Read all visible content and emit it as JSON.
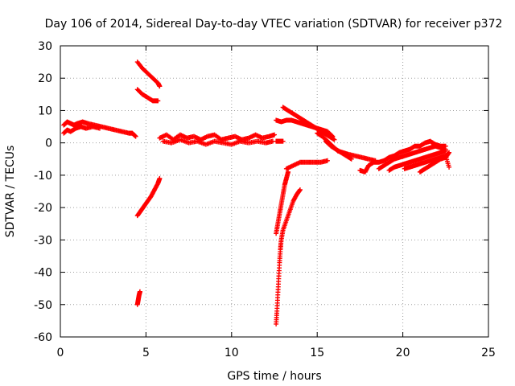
{
  "chart_data": {
    "type": "scatter",
    "title": "Day 106 of 2014, Sidereal Day-to-day VTEC variation (SDTVAR) for receiver p372",
    "xlabel": "GPS time / hours",
    "ylabel": "SDTVAR / TECUs",
    "xlim": [
      0,
      25
    ],
    "ylim": [
      -60,
      30
    ],
    "xticks": [
      0,
      5,
      10,
      15,
      20,
      25
    ],
    "yticks": [
      -60,
      -50,
      -40,
      -30,
      -20,
      -10,
      0,
      10,
      20,
      30
    ],
    "grid": true,
    "marker": "plus",
    "series": [
      {
        "name": "SDTVAR",
        "color": "#ff0000",
        "segments": [
          [
            [
              0.2,
              5.5
            ],
            [
              0.4,
              6.5
            ],
            [
              0.6,
              6
            ],
            [
              0.8,
              5.5
            ],
            [
              1.0,
              6
            ],
            [
              1.3,
              6.5
            ],
            [
              1.6,
              6
            ],
            [
              2.0,
              5.5
            ],
            [
              2.4,
              5
            ],
            [
              2.8,
              4.5
            ],
            [
              3.2,
              4
            ],
            [
              3.6,
              3.5
            ],
            [
              4.0,
              3
            ],
            [
              4.2,
              3
            ],
            [
              4.4,
              2
            ]
          ],
          [
            [
              0.2,
              3
            ],
            [
              0.4,
              4
            ],
            [
              0.6,
              3.5
            ],
            [
              0.9,
              4.5
            ],
            [
              1.2,
              5
            ],
            [
              1.5,
              4.5
            ],
            [
              1.9,
              5
            ],
            [
              2.3,
              4.5
            ]
          ],
          [
            [
              4.5,
              25
            ],
            [
              4.8,
              23
            ],
            [
              5.1,
              21.5
            ],
            [
              5.4,
              20
            ],
            [
              5.7,
              18.5
            ],
            [
              5.8,
              17.5
            ]
          ],
          [
            [
              4.5,
              16.5
            ],
            [
              4.8,
              15
            ],
            [
              5.1,
              14
            ],
            [
              5.4,
              13
            ],
            [
              5.7,
              13
            ]
          ],
          [
            [
              4.5,
              -22.5
            ],
            [
              4.7,
              -21
            ],
            [
              4.9,
              -19.5
            ],
            [
              5.1,
              -18
            ],
            [
              5.3,
              -16.5
            ],
            [
              5.5,
              -14.5
            ],
            [
              5.7,
              -12.5
            ],
            [
              5.8,
              -11
            ]
          ],
          [
            [
              4.5,
              -50
            ],
            [
              4.55,
              -48.5
            ],
            [
              4.6,
              -47
            ],
            [
              4.65,
              -46
            ]
          ],
          [
            [
              5.8,
              1.5
            ],
            [
              6.2,
              2.5
            ],
            [
              6.6,
              1
            ],
            [
              7.0,
              2.5
            ],
            [
              7.4,
              1.5
            ],
            [
              7.8,
              2
            ],
            [
              8.2,
              1
            ],
            [
              8.6,
              2
            ],
            [
              9.0,
              2.5
            ],
            [
              9.4,
              1
            ],
            [
              9.8,
              1.5
            ],
            [
              10.2,
              2
            ],
            [
              10.6,
              1
            ],
            [
              11.0,
              1.5
            ],
            [
              11.4,
              2.5
            ],
            [
              11.8,
              1.5
            ],
            [
              12.2,
              2
            ],
            [
              12.5,
              2.5
            ]
          ],
          [
            [
              6.0,
              0.5
            ],
            [
              6.5,
              0
            ],
            [
              7.0,
              1
            ],
            [
              7.5,
              0
            ],
            [
              8.0,
              0.5
            ],
            [
              8.5,
              -0.5
            ],
            [
              9.0,
              0.5
            ],
            [
              9.5,
              0
            ],
            [
              10.0,
              -0.5
            ],
            [
              10.5,
              0.5
            ],
            [
              11.0,
              0
            ],
            [
              11.5,
              0.5
            ],
            [
              12.0,
              0
            ],
            [
              12.4,
              0.5
            ]
          ],
          [
            [
              12.6,
              -28
            ],
            [
              12.7,
              -25
            ],
            [
              12.8,
              -22
            ],
            [
              12.9,
              -19
            ],
            [
              13.0,
              -16
            ],
            [
              13.1,
              -13
            ],
            [
              13.2,
              -11
            ],
            [
              13.3,
              -9
            ]
          ],
          [
            [
              12.6,
              -56
            ],
            [
              12.65,
              -52
            ],
            [
              12.7,
              -47
            ],
            [
              12.75,
              -42
            ],
            [
              12.8,
              -37
            ],
            [
              12.85,
              -33
            ],
            [
              12.9,
              -30
            ],
            [
              13.0,
              -27
            ],
            [
              13.2,
              -24
            ],
            [
              13.4,
              -21
            ],
            [
              13.6,
              -18
            ],
            [
              13.8,
              -16
            ],
            [
              14.0,
              -14.5
            ]
          ],
          [
            [
              13.2,
              -8
            ],
            [
              13.6,
              -7
            ],
            [
              14.0,
              -6
            ],
            [
              14.4,
              -6
            ],
            [
              14.8,
              -6
            ],
            [
              15.2,
              -6
            ],
            [
              15.6,
              -5.5
            ]
          ],
          [
            [
              12.6,
              7
            ],
            [
              12.9,
              6.5
            ],
            [
              13.2,
              7
            ],
            [
              13.5,
              7
            ],
            [
              13.8,
              6.5
            ],
            [
              14.1,
              6
            ],
            [
              14.4,
              5.5
            ],
            [
              14.7,
              5
            ],
            [
              15.0,
              4.5
            ],
            [
              15.3,
              4
            ],
            [
              15.6,
              3.5
            ],
            [
              15.9,
              2
            ]
          ],
          [
            [
              13.0,
              11
            ],
            [
              13.3,
              10
            ],
            [
              13.6,
              9
            ],
            [
              13.9,
              8
            ],
            [
              14.2,
              7
            ],
            [
              14.5,
              6
            ],
            [
              14.8,
              5
            ],
            [
              15.1,
              4
            ],
            [
              15.4,
              3
            ],
            [
              15.7,
              2
            ],
            [
              16.0,
              1
            ]
          ],
          [
            [
              15.0,
              3
            ],
            [
              15.3,
              2
            ],
            [
              15.6,
              0.5
            ],
            [
              15.9,
              -1
            ],
            [
              16.2,
              -2.5
            ],
            [
              16.5,
              -3
            ],
            [
              16.8,
              -3.5
            ],
            [
              17.2,
              -4
            ],
            [
              17.6,
              -4.5
            ],
            [
              18.0,
              -5
            ],
            [
              18.4,
              -5.5
            ]
          ],
          [
            [
              15.5,
              0.5
            ],
            [
              15.8,
              -1
            ],
            [
              16.1,
              -2
            ],
            [
              16.4,
              -3
            ],
            [
              16.7,
              -4
            ],
            [
              17.0,
              -5
            ]
          ],
          [
            [
              12.6,
              0.5
            ],
            [
              12.8,
              0.5
            ],
            [
              13.0,
              0.5
            ]
          ],
          [
            [
              17.5,
              -8.5
            ],
            [
              17.8,
              -9
            ],
            [
              18.0,
              -7
            ],
            [
              18.3,
              -6
            ],
            [
              18.6,
              -6
            ],
            [
              18.9,
              -5.5
            ],
            [
              19.2,
              -4.5
            ],
            [
              19.5,
              -4
            ],
            [
              19.8,
              -3
            ],
            [
              20.1,
              -2.5
            ],
            [
              20.4,
              -2
            ],
            [
              20.7,
              -1
            ],
            [
              21.0,
              -1
            ],
            [
              21.3,
              0
            ],
            [
              21.6,
              0.5
            ],
            [
              21.9,
              -0.5
            ],
            [
              22.2,
              -1
            ],
            [
              22.5,
              -1
            ]
          ],
          [
            [
              18.6,
              -8
            ],
            [
              18.9,
              -7
            ],
            [
              19.2,
              -6
            ],
            [
              19.5,
              -5
            ],
            [
              19.8,
              -4.5
            ],
            [
              20.1,
              -4
            ],
            [
              20.4,
              -3.5
            ],
            [
              20.7,
              -3
            ],
            [
              21.0,
              -2.5
            ],
            [
              21.3,
              -2
            ],
            [
              21.6,
              -1.5
            ],
            [
              21.9,
              -1
            ],
            [
              22.2,
              -1.5
            ],
            [
              22.5,
              -2
            ]
          ],
          [
            [
              19.2,
              -8.5
            ],
            [
              19.5,
              -7.5
            ],
            [
              19.8,
              -7
            ],
            [
              20.1,
              -6.5
            ],
            [
              20.4,
              -6
            ],
            [
              20.7,
              -5.5
            ],
            [
              21.0,
              -5
            ],
            [
              21.3,
              -4.5
            ],
            [
              21.6,
              -4
            ],
            [
              21.9,
              -3.5
            ],
            [
              22.2,
              -3
            ],
            [
              22.5,
              -2.5
            ]
          ],
          [
            [
              20.1,
              -8
            ],
            [
              20.4,
              -7.5
            ],
            [
              20.7,
              -7
            ],
            [
              21.0,
              -6.5
            ],
            [
              21.3,
              -6
            ],
            [
              21.6,
              -5.5
            ],
            [
              21.9,
              -5
            ],
            [
              22.2,
              -4.5
            ],
            [
              22.5,
              -4
            ],
            [
              22.7,
              -7.5
            ]
          ],
          [
            [
              21.0,
              -9
            ],
            [
              21.3,
              -8
            ],
            [
              21.6,
              -7
            ],
            [
              21.9,
              -6
            ],
            [
              22.2,
              -5
            ],
            [
              22.5,
              -4.5
            ],
            [
              22.7,
              -3
            ]
          ]
        ]
      }
    ]
  }
}
